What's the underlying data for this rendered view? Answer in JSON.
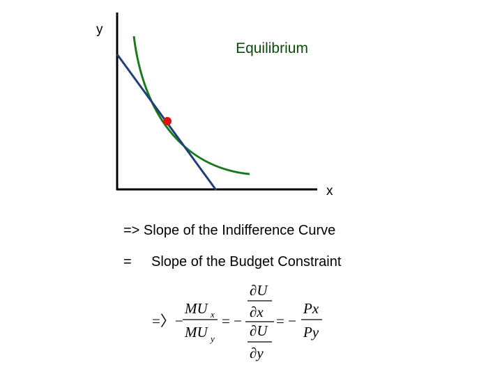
{
  "axes": {
    "y_label": "y",
    "x_label": "x"
  },
  "annotation": "Equilibrium",
  "statements": {
    "line1": "=> Slope of the Indifference Curve",
    "equals": "=",
    "line2": "Slope of the Budget Constraint"
  },
  "formula": {
    "lead": "=〉−",
    "mu_num": "MU",
    "mu_num_sub": "x",
    "mu_den": "MU",
    "mu_den_sub": "y",
    "eq1": "= −",
    "du_top": "∂U",
    "dx": "∂x",
    "du_bottom": "∂U",
    "dy": "∂y",
    "eq2": "= −",
    "px": "Px",
    "py": "Py"
  }
}
